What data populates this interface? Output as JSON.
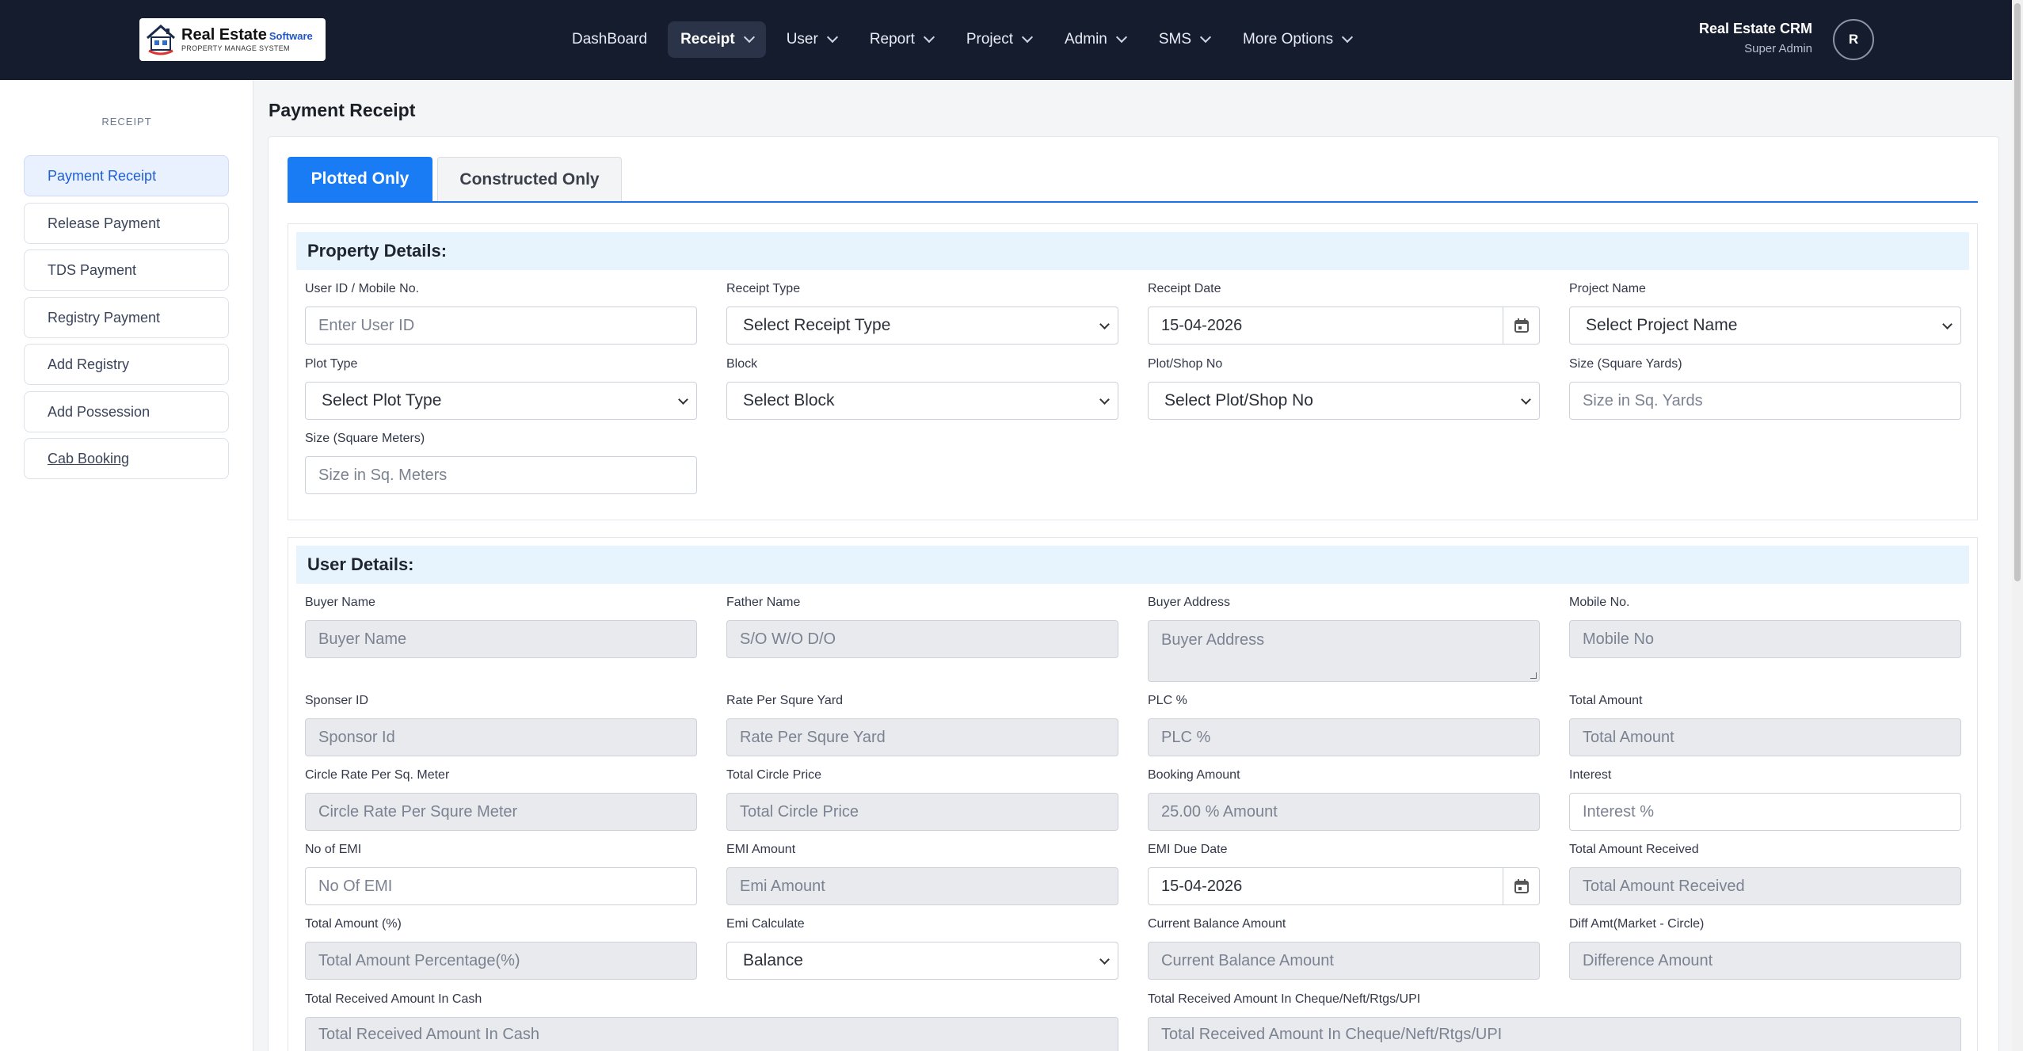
{
  "brand": {
    "title": "Real Estate",
    "title_suffix": "Software",
    "subtitle": "PROPERTY MANAGE SYSTEM"
  },
  "nav": {
    "items": [
      {
        "label": "DashBoard",
        "has_dropdown": false
      },
      {
        "label": "Receipt",
        "has_dropdown": true,
        "active": true
      },
      {
        "label": "User",
        "has_dropdown": true
      },
      {
        "label": "Report",
        "has_dropdown": true
      },
      {
        "label": "Project",
        "has_dropdown": true
      },
      {
        "label": "Admin",
        "has_dropdown": true
      },
      {
        "label": "SMS",
        "has_dropdown": true
      },
      {
        "label": "More Options",
        "has_dropdown": true
      }
    ]
  },
  "user": {
    "name": "Real Estate CRM",
    "role": "Super Admin",
    "avatar_initial": "R"
  },
  "sidebar": {
    "heading": "RECEIPT",
    "items": [
      {
        "label": "Payment Receipt",
        "active": true
      },
      {
        "label": "Release Payment"
      },
      {
        "label": "TDS Payment"
      },
      {
        "label": "Registry Payment"
      },
      {
        "label": "Add Registry"
      },
      {
        "label": "Add Possession"
      },
      {
        "label": "Cab Booking"
      }
    ]
  },
  "page": {
    "title": "Payment Receipt"
  },
  "tabs": [
    {
      "label": "Plotted Only",
      "active": true
    },
    {
      "label": "Constructed Only",
      "active": false
    }
  ],
  "property": {
    "heading": "Property Details:",
    "user_id": {
      "label": "User ID / Mobile No.",
      "placeholder": "Enter User ID"
    },
    "receipt_type": {
      "label": "Receipt Type",
      "value": "Select Receipt Type"
    },
    "receipt_date": {
      "label": "Receipt Date",
      "value": "15-04-2026"
    },
    "project_name": {
      "label": "Project Name",
      "value": "Select Project Name"
    },
    "plot_type": {
      "label": "Plot Type",
      "value": "Select Plot Type"
    },
    "block": {
      "label": "Block",
      "value": "Select Block"
    },
    "plot_no": {
      "label": "Plot/Shop No",
      "value": "Select Plot/Shop No"
    },
    "size_yards": {
      "label": "Size (Square Yards)",
      "placeholder": "Size in Sq. Yards"
    },
    "size_meters": {
      "label": "Size (Square Meters)",
      "placeholder": "Size in Sq. Meters"
    }
  },
  "user_details": {
    "heading": "User Details:",
    "buyer_name": {
      "label": "Buyer Name",
      "placeholder": "Buyer Name"
    },
    "father_name": {
      "label": "Father Name",
      "placeholder": "S/O W/O D/O"
    },
    "buyer_address": {
      "label": "Buyer Address",
      "placeholder": "Buyer Address"
    },
    "mobile_no": {
      "label": "Mobile No.",
      "placeholder": "Mobile No"
    },
    "sponsor_id": {
      "label": "Sponser ID",
      "placeholder": "Sponsor Id"
    },
    "rate_per_yard": {
      "label": "Rate Per Squre Yard",
      "placeholder": "Rate Per Squre Yard"
    },
    "plc": {
      "label": "PLC %",
      "placeholder": "PLC %"
    },
    "total_amount": {
      "label": "Total Amount",
      "placeholder": "Total Amount"
    },
    "circle_rate": {
      "label": "Circle Rate Per Sq. Meter",
      "placeholder": "Circle Rate Per Squre Meter"
    },
    "total_circle_price": {
      "label": "Total Circle Price",
      "placeholder": "Total Circle Price"
    },
    "booking_amount": {
      "label": "Booking Amount",
      "placeholder": "25.00 % Amount"
    },
    "interest": {
      "label": "Interest",
      "placeholder": "Interest %"
    },
    "no_of_emi": {
      "label": "No of EMI",
      "placeholder": "No Of EMI"
    },
    "emi_amount": {
      "label": "EMI Amount",
      "placeholder": "Emi Amount"
    },
    "emi_due_date": {
      "label": "EMI Due Date",
      "value": "15-04-2026"
    },
    "total_received": {
      "label": "Total Amount Received",
      "placeholder": "Total Amount Received"
    },
    "total_pct": {
      "label": "Total Amount (%)",
      "placeholder": "Total Amount Percentage(%)"
    },
    "emi_calculate": {
      "label": "Emi Calculate",
      "value": "Balance"
    },
    "current_balance": {
      "label": "Current Balance Amount",
      "placeholder": "Current Balance Amount"
    },
    "diff_amt": {
      "label": "Diff Amt(Market - Circle)",
      "placeholder": "Difference Amount"
    },
    "received_cash": {
      "label": "Total Received Amount In Cash",
      "placeholder": "Total Received Amount In Cash"
    },
    "received_cheque": {
      "label": "Total Received Amount In Cheque/Neft/Rtgs/UPI",
      "placeholder": "Total Received Amount In Cheque/Neft/Rtgs/UPI"
    }
  },
  "colors": {
    "navbar": "#141c2e",
    "accent": "#1a7cf5",
    "section_header": "#e7f3fd",
    "disabled_input": "#e8eaed"
  },
  "icons": {
    "calendar": "calendar-icon",
    "dropdown": "chevron-down-icon",
    "logo": "house-logo-icon"
  }
}
